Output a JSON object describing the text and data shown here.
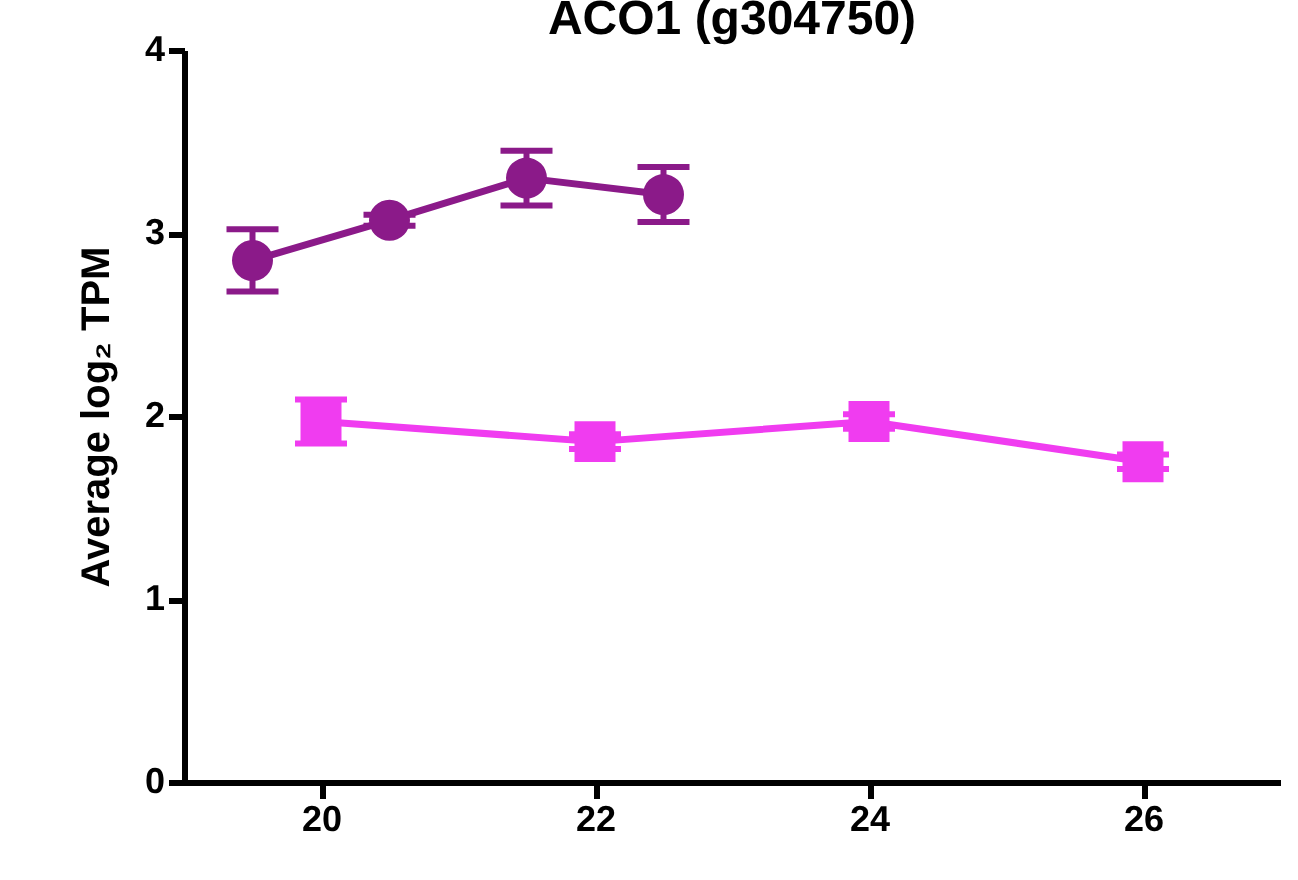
{
  "chart_data": {
    "type": "line",
    "title": "ACO1 (g304750)",
    "ylabel": "Average log₂ TPM",
    "xlim": [
      19,
      27
    ],
    "xticks": [
      20,
      22,
      24,
      26
    ],
    "ylim": [
      0,
      4
    ],
    "yticks": [
      0,
      1,
      2,
      3,
      4
    ],
    "grid": false,
    "series": [
      {
        "color": "#8b1a89",
        "marker": "circle",
        "x": [
          19.5,
          20.5,
          21.5,
          22.5
        ],
        "values": [
          2.85,
          3.07,
          3.3,
          3.21
        ],
        "errors": [
          0.17,
          0.03,
          0.15,
          0.15
        ]
      },
      {
        "color": "#f03cf0",
        "marker": "square",
        "x": [
          20,
          22,
          24,
          26
        ],
        "values": [
          1.97,
          1.86,
          1.97,
          1.75
        ],
        "errors": [
          0.12,
          0.04,
          0.04,
          0.04
        ]
      }
    ]
  }
}
